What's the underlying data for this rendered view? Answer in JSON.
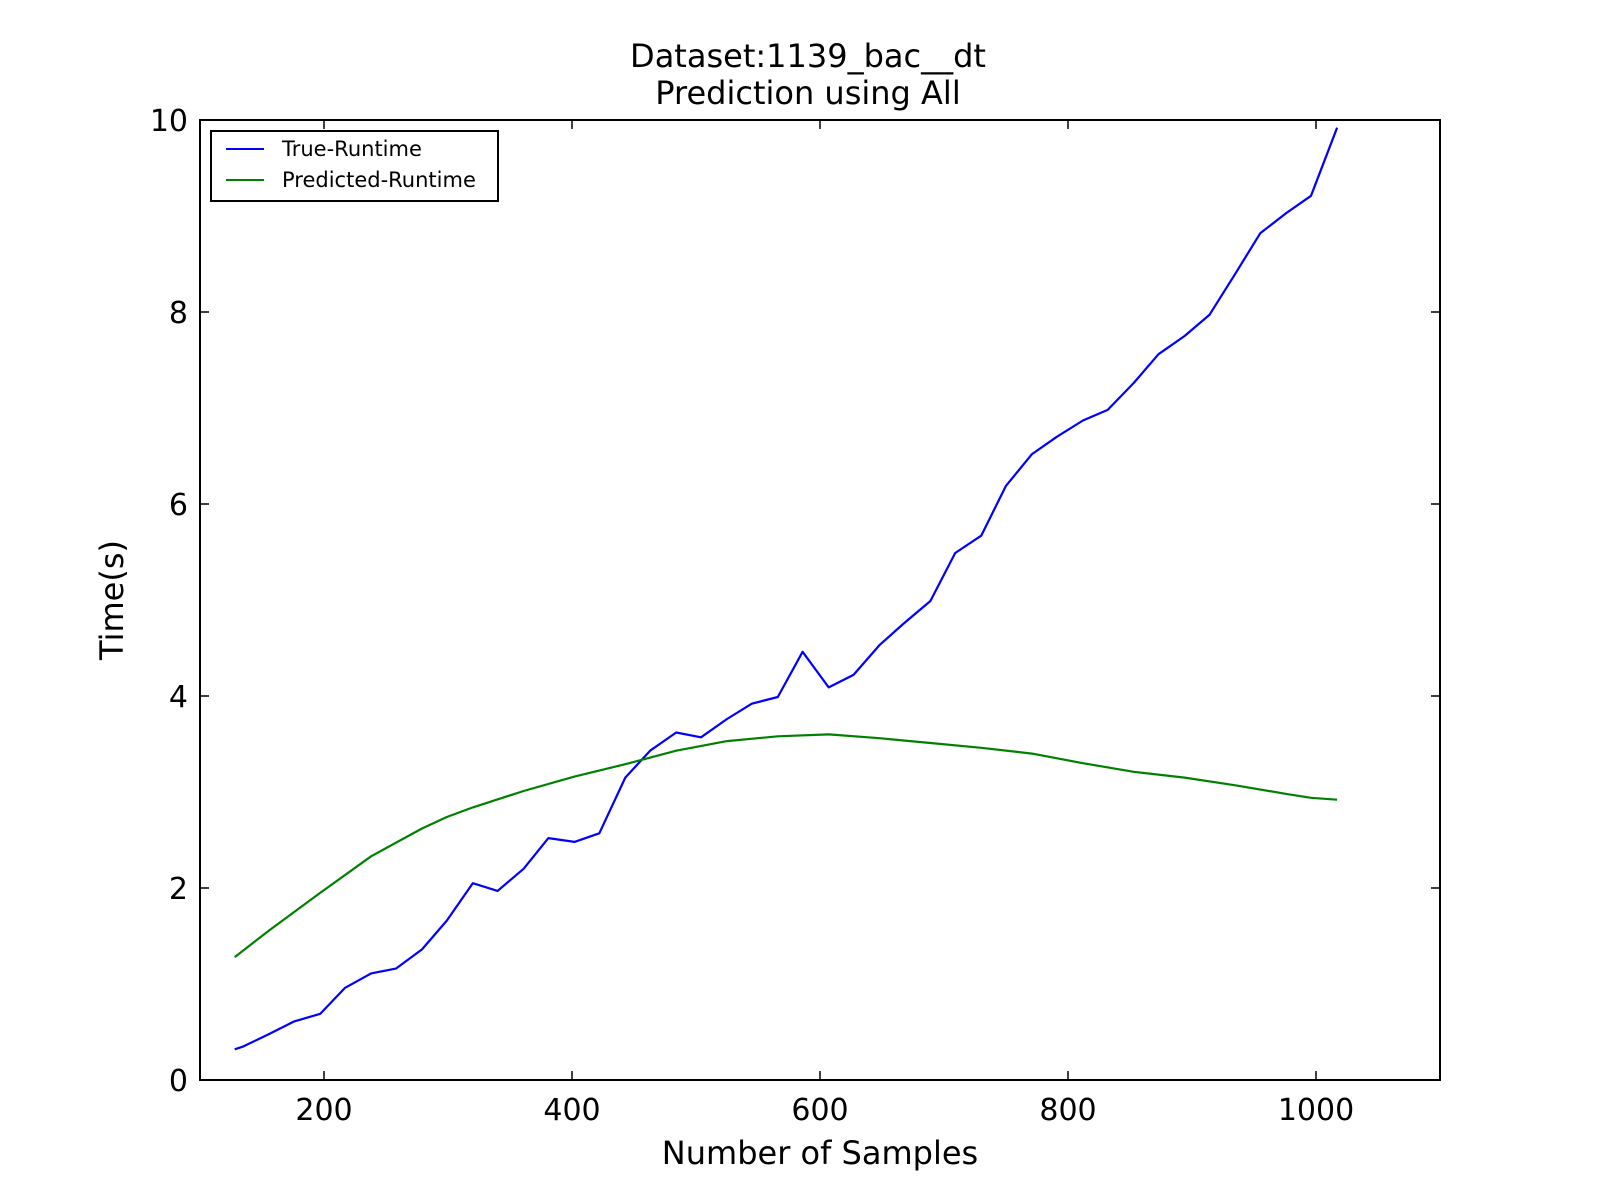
{
  "chart_data": {
    "type": "line",
    "title": "Dataset:1139_bac__dt",
    "subtitle": "Prediction using All",
    "xlabel": "Number of Samples",
    "ylabel": "Time(s)",
    "xlim": [
      100,
      1100
    ],
    "ylim": [
      0,
      10
    ],
    "xticks": [
      200,
      400,
      600,
      800,
      1000
    ],
    "yticks": [
      0,
      2,
      4,
      6,
      8,
      10
    ],
    "grid": false,
    "legend_position": "top-left",
    "series": [
      {
        "name": "True-Runtime",
        "color": "#0000ff",
        "x": [
          128,
          135,
          156,
          176,
          197,
          217,
          238,
          258,
          279,
          299,
          320,
          340,
          361,
          381,
          402,
          422,
          443,
          463,
          484,
          504,
          525,
          545,
          566,
          586,
          607,
          627,
          648,
          668,
          689,
          709,
          730,
          750,
          771,
          791,
          812,
          832,
          853,
          873,
          894,
          914,
          935,
          955,
          976,
          996,
          1017
        ],
        "values": [
          0.32,
          0.35,
          0.48,
          0.61,
          0.69,
          0.96,
          1.11,
          1.16,
          1.36,
          1.66,
          2.05,
          1.97,
          2.2,
          2.52,
          2.48,
          2.57,
          3.15,
          3.43,
          3.62,
          3.57,
          3.76,
          3.92,
          3.99,
          4.46,
          4.09,
          4.22,
          4.53,
          4.76,
          4.99,
          5.49,
          5.67,
          6.19,
          6.52,
          6.7,
          6.87,
          6.98,
          7.26,
          7.56,
          7.75,
          7.97,
          8.4,
          8.82,
          9.03,
          9.21,
          9.92
        ]
      },
      {
        "name": "Predicted-Runtime",
        "color": "#008000",
        "x": [
          128,
          156,
          197,
          238,
          279,
          299,
          320,
          361,
          402,
          443,
          484,
          525,
          566,
          607,
          648,
          689,
          730,
          771,
          812,
          853,
          894,
          935,
          976,
          996,
          1017
        ],
        "values": [
          1.28,
          1.56,
          1.95,
          2.33,
          2.62,
          2.74,
          2.84,
          3.01,
          3.16,
          3.29,
          3.43,
          3.53,
          3.58,
          3.6,
          3.56,
          3.51,
          3.46,
          3.4,
          3.3,
          3.21,
          3.15,
          3.07,
          2.98,
          2.94,
          2.92
        ]
      }
    ]
  }
}
